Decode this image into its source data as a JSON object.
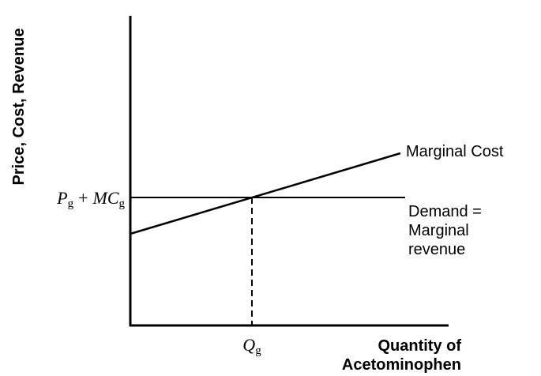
{
  "axes": {
    "y_label": "Price, Cost, Revenue",
    "x_label": [
      "Quantity of",
      "Acetominophen"
    ]
  },
  "curves": {
    "marginal_cost": "Marginal Cost",
    "demand": [
      "Demand =",
      "Marginal",
      "revenue"
    ]
  },
  "ticks": {
    "y": {
      "p": "P",
      "p_sub": "g",
      "plus": "+",
      "mc": "MC",
      "mc_sub": "g"
    },
    "x": {
      "q": "Q",
      "q_sub": "g"
    }
  }
}
